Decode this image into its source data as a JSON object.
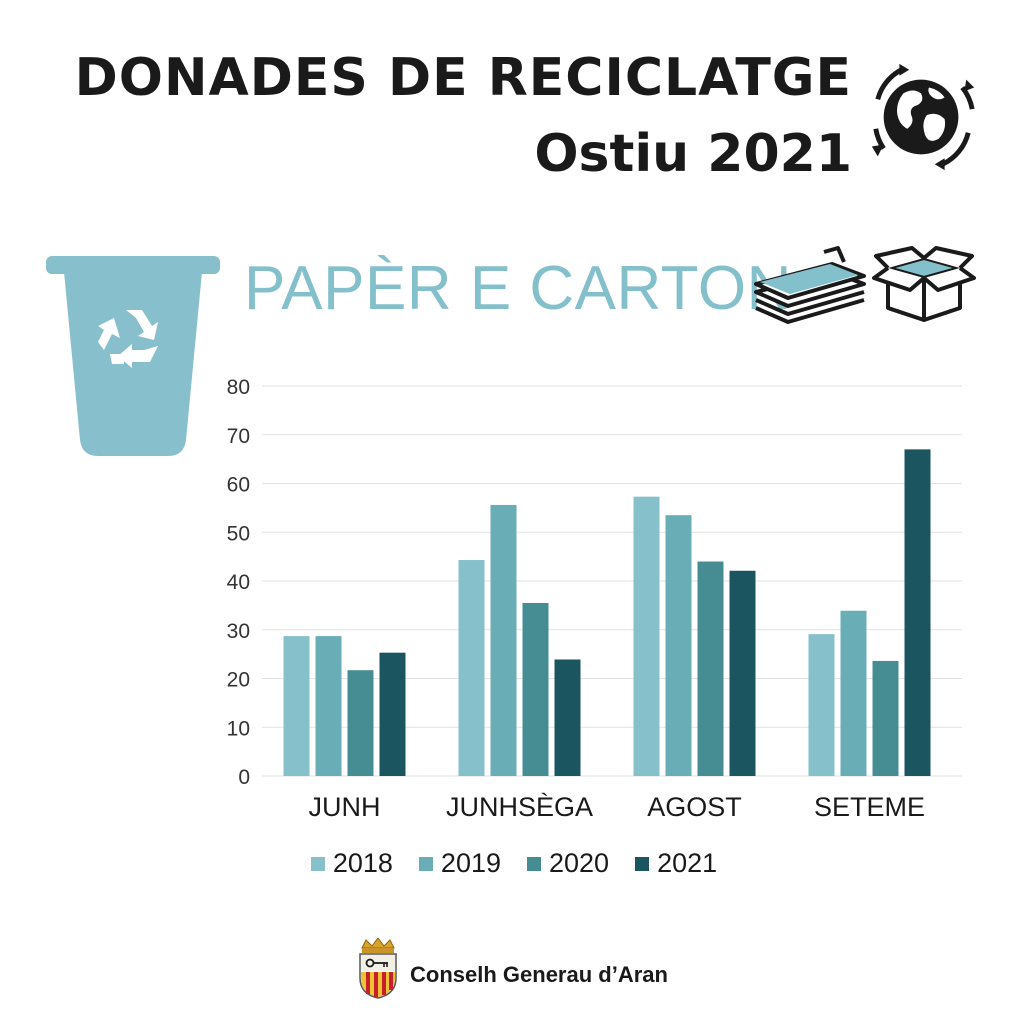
{
  "header": {
    "title": "DONADES DE RECICLATGE",
    "subtitle": "Ostiu 2021"
  },
  "section": {
    "title": "PAPÈR E CARTON"
  },
  "icons": {
    "globe": "globe-recycle-icon",
    "bin": "recycle-bin-icon",
    "paper": "paper-stack-icon",
    "box": "cardboard-box-icon",
    "crest": "crest-icon"
  },
  "colors": {
    "accent": "#84c0cc",
    "bin": "#88bfcc",
    "s2018": "#86c0cb",
    "s2019": "#69aeb7",
    "s2020": "#468c93",
    "s2021": "#1b5560",
    "grid": "#e2e2e2"
  },
  "chart_data": {
    "type": "bar",
    "categories": [
      "JUNH",
      "JUNHSÈGA",
      "AGOST",
      "SETEME"
    ],
    "series": [
      {
        "name": "2018",
        "values": [
          28.7,
          44.3,
          57.3,
          29.1
        ]
      },
      {
        "name": "2019",
        "values": [
          28.7,
          55.6,
          53.5,
          33.9
        ]
      },
      {
        "name": "2020",
        "values": [
          21.7,
          35.5,
          44.0,
          23.6
        ]
      },
      {
        "name": "2021",
        "values": [
          25.3,
          23.9,
          42.1,
          67.0
        ]
      }
    ],
    "yticks": [
      "0",
      "10",
      "20",
      "30",
      "40",
      "50",
      "60",
      "70",
      "80"
    ],
    "ylim": [
      0,
      80
    ],
    "grid": true,
    "legend": "bottom"
  },
  "footer": {
    "org": "Conselh Generau d’Aran"
  }
}
